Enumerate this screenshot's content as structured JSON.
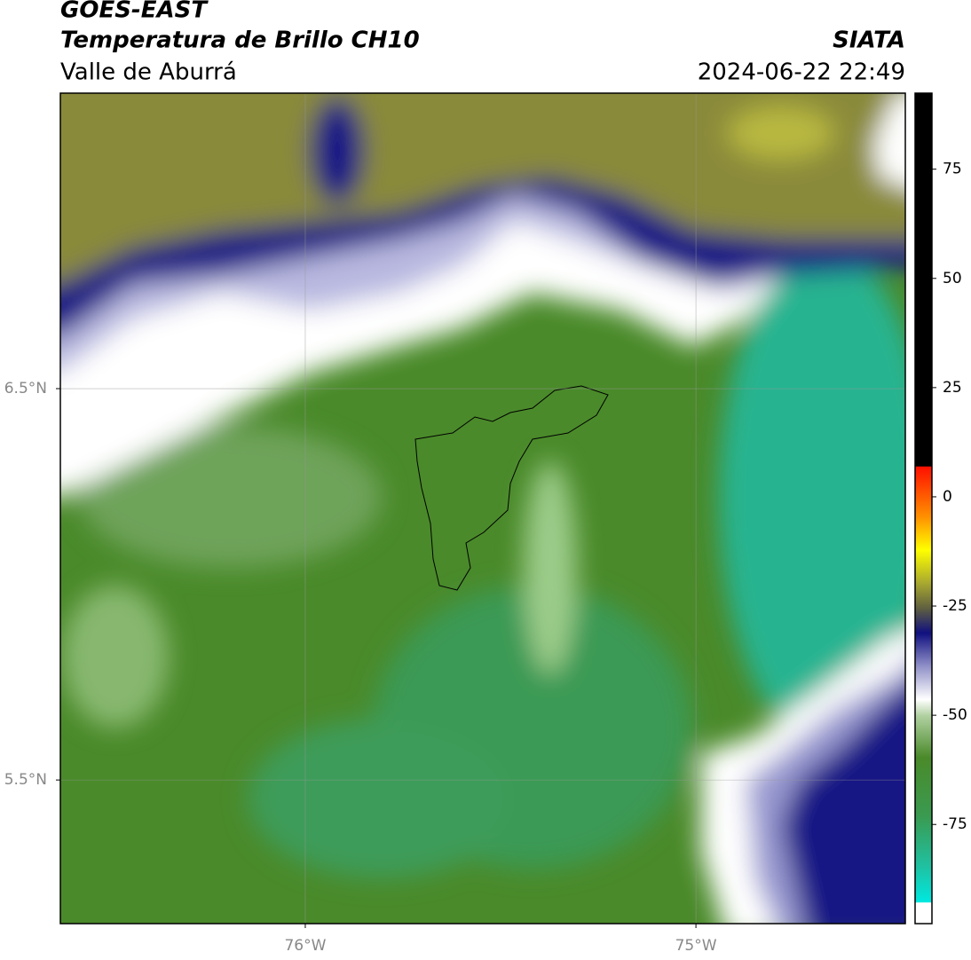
{
  "header": {
    "title": "GOES-EAST",
    "subtitle": "Temperatura de Brillo CH10",
    "region": "Valle de Aburrá",
    "source": "SIATA",
    "timestamp": "2024-06-22 22:49"
  },
  "map": {
    "xlim": [
      -76.627,
      -74.464
    ],
    "ylim": [
      5.133,
      7.255
    ],
    "xticks": [
      {
        "value": -76,
        "label": "76°W"
      },
      {
        "value": -75,
        "label": "75°W"
      }
    ],
    "yticks": [
      {
        "value": 5.5,
        "label": "5.5°N"
      },
      {
        "value": 6.5,
        "label": "6.5°N"
      }
    ],
    "grid": true
  },
  "colorbar": {
    "lim": [
      -97.7,
      92.4
    ],
    "ticks": [
      -75,
      -50,
      -25,
      0,
      25,
      50,
      75
    ]
  }
}
